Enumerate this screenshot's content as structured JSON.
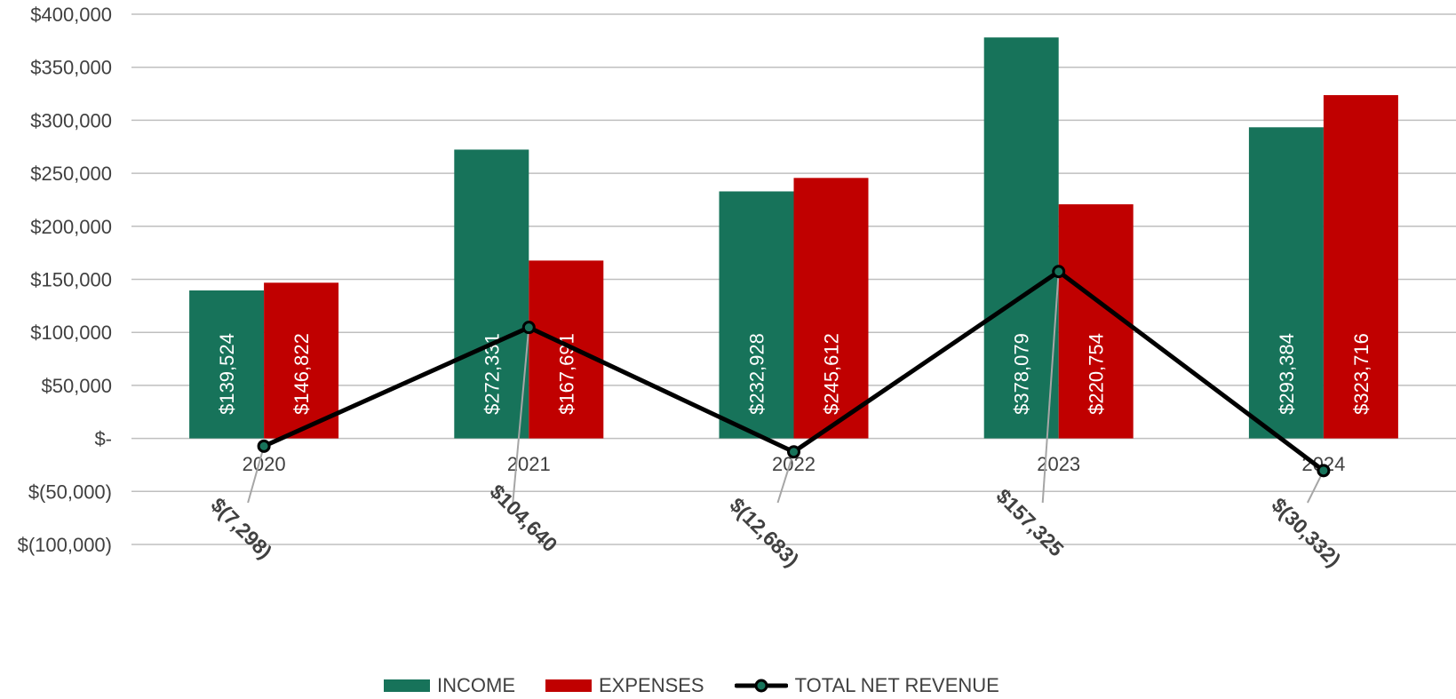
{
  "chart_data": {
    "type": "bar",
    "categories": [
      "2020",
      "2021",
      "2022",
      "2023",
      "2024"
    ],
    "series": [
      {
        "name": "INCOME",
        "type": "bar",
        "color": "#17735a",
        "values": [
          139524,
          272331,
          232928,
          378079,
          293384
        ],
        "labels": [
          "$139,524",
          "$272,331",
          "$232,928",
          "$378,079",
          "$293,384"
        ]
      },
      {
        "name": "EXPENSES",
        "type": "bar",
        "color": "#c00000",
        "values": [
          146822,
          167691,
          245612,
          220754,
          323716
        ],
        "labels": [
          "$146,822",
          "$167,691",
          "$245,612",
          "$220,754",
          "$323,716"
        ]
      },
      {
        "name": "TOTAL NET REVENUE",
        "type": "line",
        "color": "#000000",
        "marker_color": "#17735a",
        "values": [
          -7298,
          104640,
          -12683,
          157325,
          -30332
        ],
        "labels": [
          "$(7,298)",
          "$104,640",
          "$(12,683)",
          "$157,325",
          "$(30,332)"
        ]
      }
    ],
    "ylim": [
      -100000,
      400000
    ],
    "yticks": [
      {
        "value": 400000,
        "label": "$400,000"
      },
      {
        "value": 350000,
        "label": "$350,000"
      },
      {
        "value": 300000,
        "label": "$300,000"
      },
      {
        "value": 250000,
        "label": "$250,000"
      },
      {
        "value": 200000,
        "label": "$200,000"
      },
      {
        "value": 150000,
        "label": "$150,000"
      },
      {
        "value": 100000,
        "label": "$100,000"
      },
      {
        "value": 50000,
        "label": "$50,000"
      },
      {
        "value": 0,
        "label": "$-"
      },
      {
        "value": -50000,
        "label": "$(50,000)"
      },
      {
        "value": -100000,
        "label": "$(100,000)"
      }
    ],
    "grid": true,
    "legend": "bottom"
  }
}
